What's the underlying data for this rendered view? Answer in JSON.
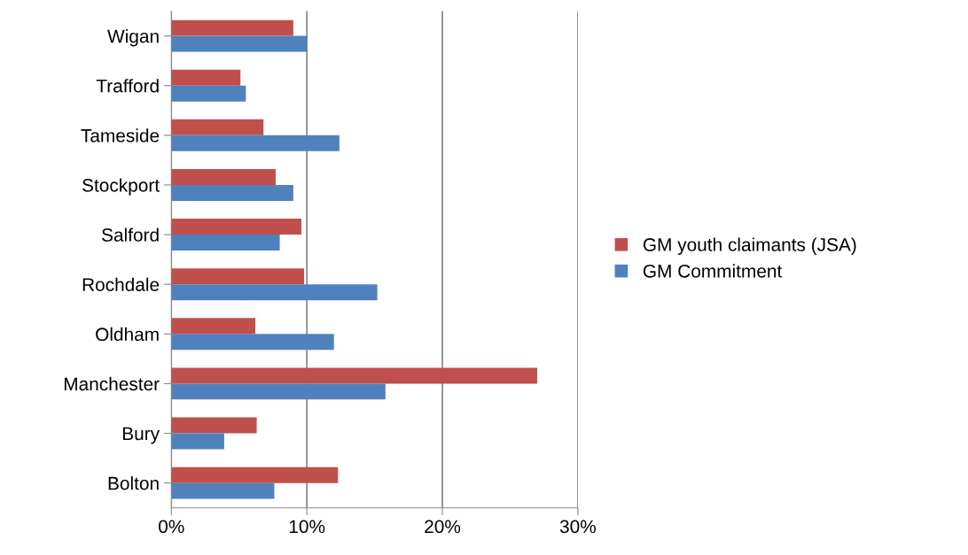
{
  "chart_data": {
    "type": "bar",
    "orientation": "horizontal",
    "categories": [
      "Wigan",
      "Trafford",
      "Tameside",
      "Stockport",
      "Salford",
      "Rochdale",
      "Oldham",
      "Manchester",
      "Bury",
      "Bolton"
    ],
    "series": [
      {
        "name": "GM youth claimants (JSA)",
        "color": "#c0504d",
        "values": [
          9.0,
          5.1,
          6.8,
          7.7,
          9.6,
          9.8,
          6.2,
          27.0,
          6.3,
          12.3
        ]
      },
      {
        "name": "GM Commitment",
        "color": "#4f81bd",
        "values": [
          10.0,
          5.5,
          12.4,
          9.0,
          8.0,
          15.2,
          12.0,
          15.8,
          3.9,
          7.6
        ]
      }
    ],
    "xlim": [
      0,
      30
    ],
    "xticks": [
      {
        "value": 0,
        "label": "0%"
      },
      {
        "value": 10,
        "label": "10%"
      },
      {
        "value": 20,
        "label": "20%"
      },
      {
        "value": 30,
        "label": "30%"
      }
    ],
    "grid": "x",
    "legend": "right"
  }
}
